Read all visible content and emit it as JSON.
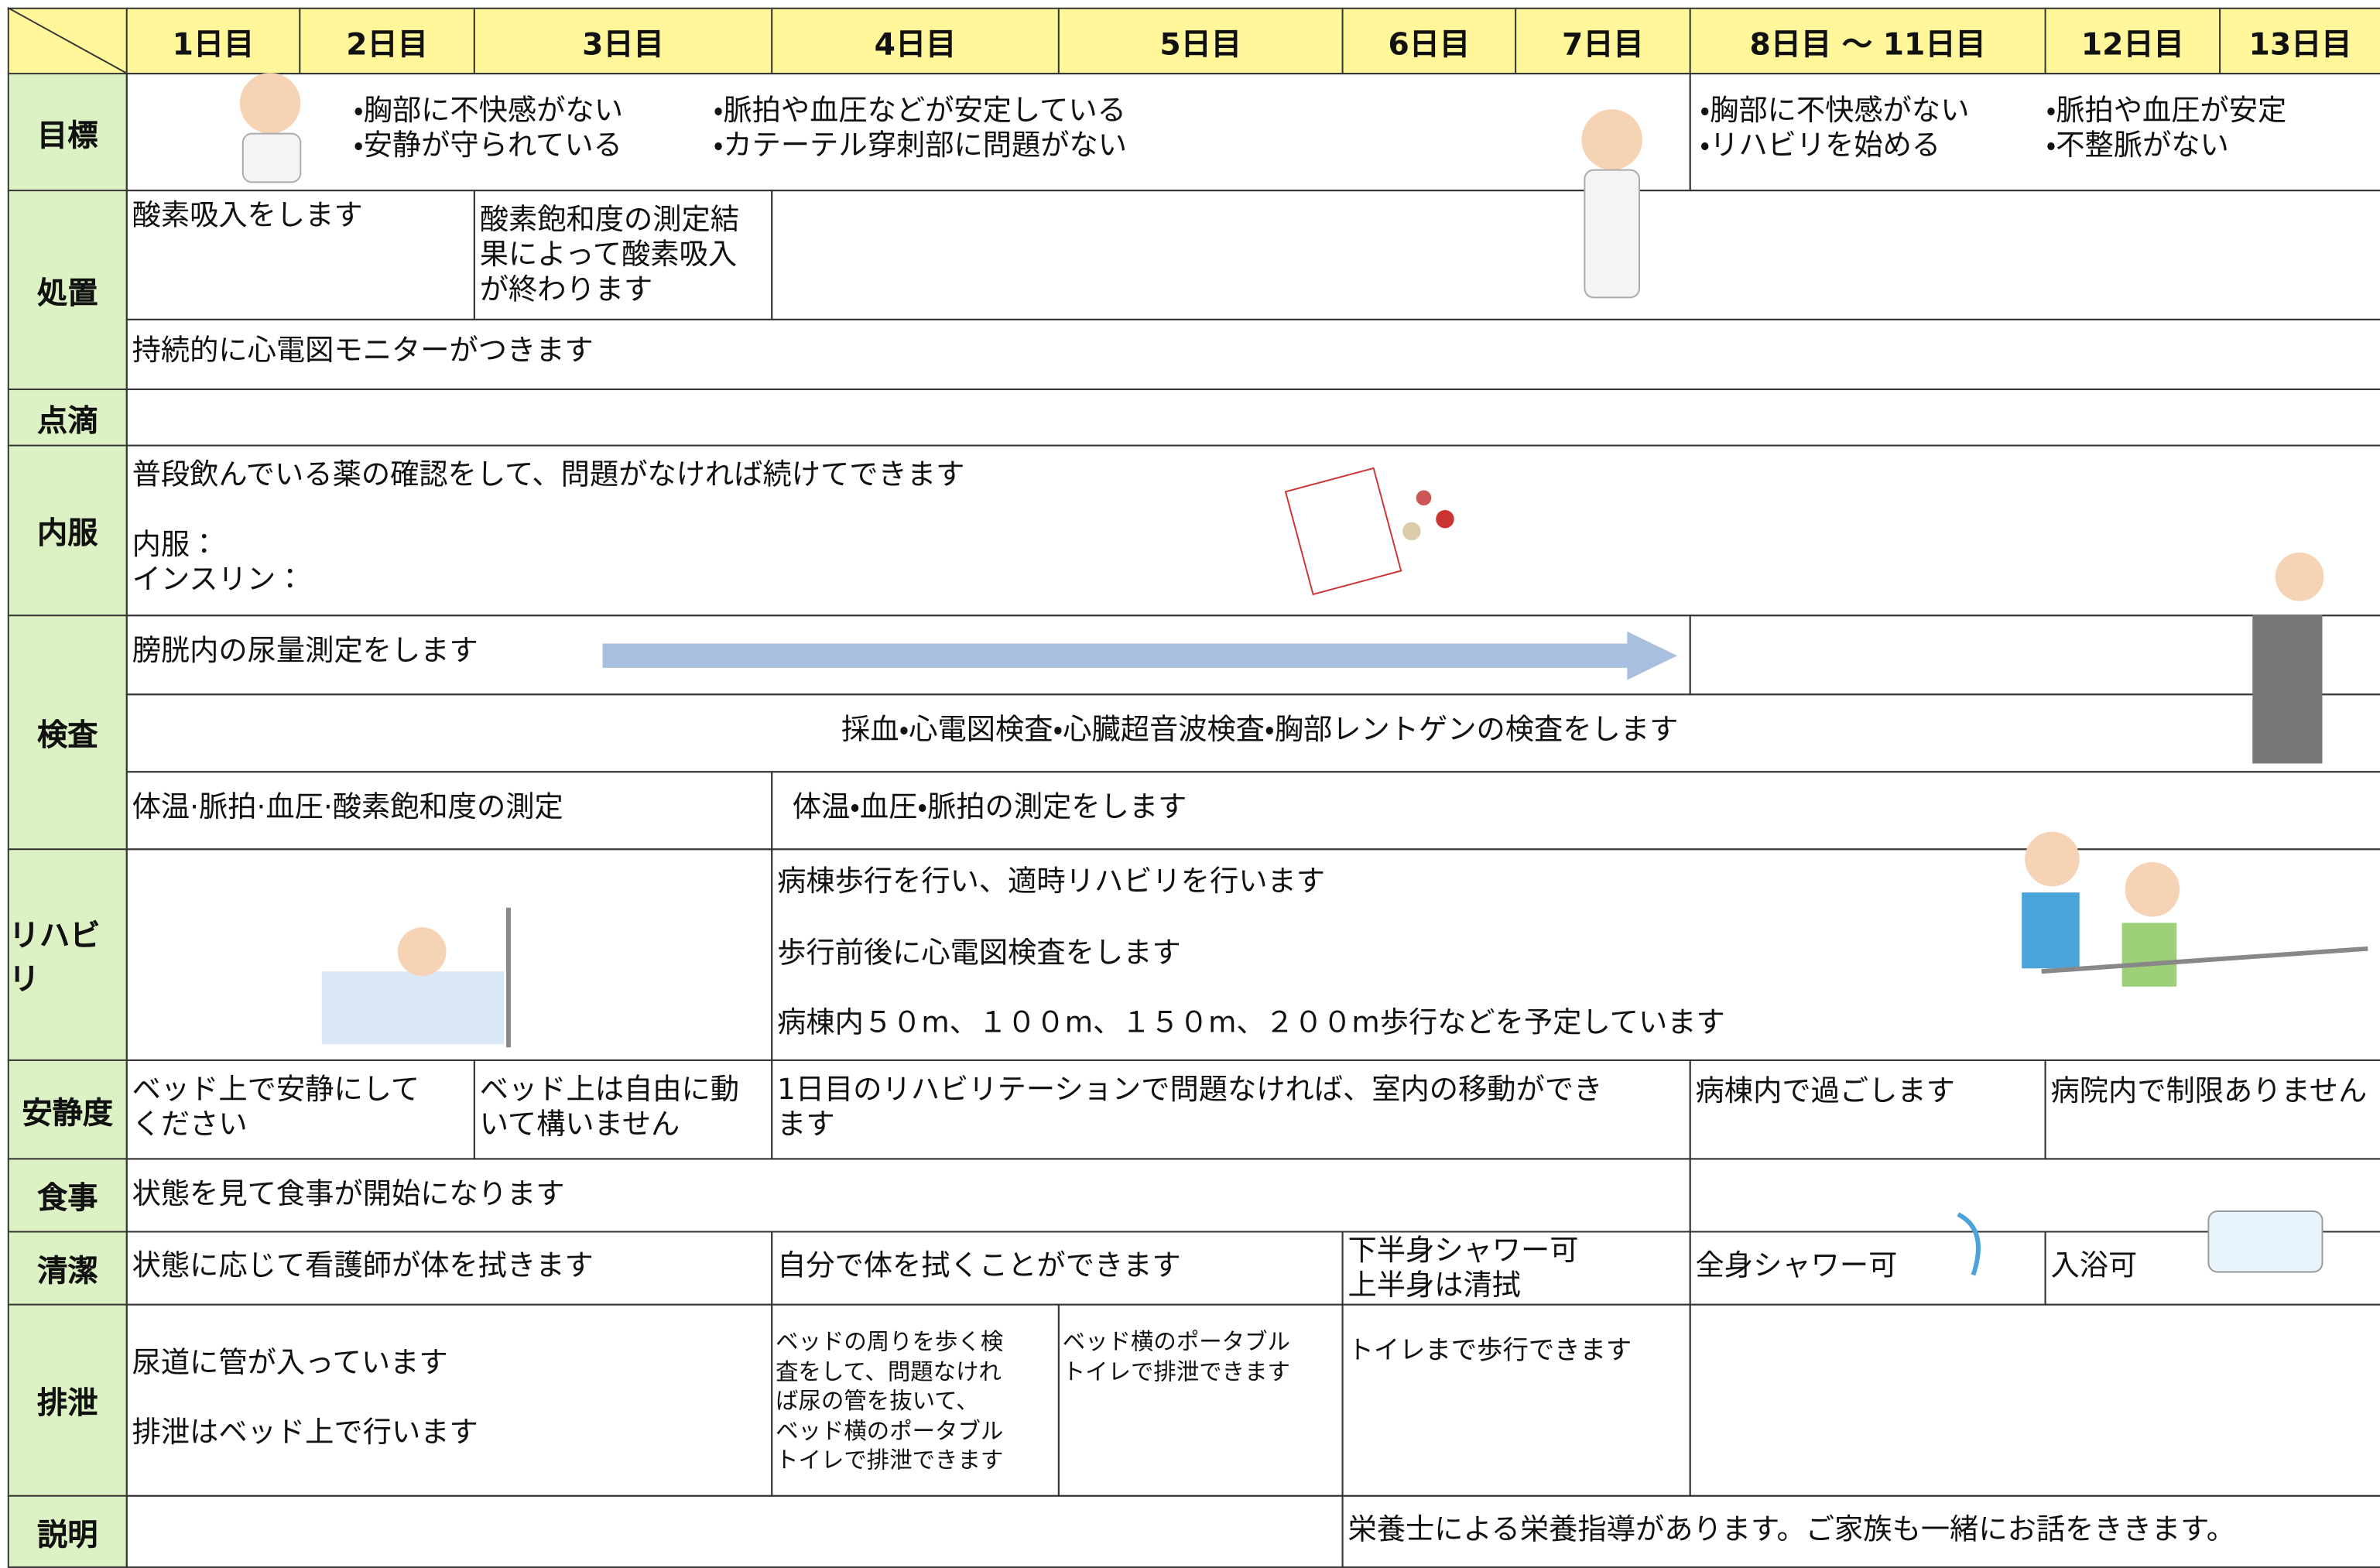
{
  "header": {
    "days": [
      "1日目",
      "2日目",
      "3日目",
      "4日目",
      "5日目",
      "6日目",
      "7日目",
      "8日目 ～ 11日目",
      "12日目",
      "13日目"
    ]
  },
  "rows": [
    {
      "label": "目標",
      "texts": [
        [
          "・胸部に不快感がない",
          "・安静が守られている"
        ],
        [
          "・脈拍や血圧などが安定している",
          "・カテーテル穿刺部に問題がない"
        ],
        [
          "・胸部に不快感がない",
          "・リハビリを始める"
        ],
        [
          "・脈拍や血圧が安定",
          "・不整脈がない"
        ]
      ]
    },
    {
      "label": "処置",
      "texts": [
        [
          "酸素吸入をします"
        ],
        [
          "酸素飽和度の測定結",
          "果によって酸素吸入",
          "が終わります"
        ],
        [
          "持続的に心電図モニターがつきます"
        ]
      ]
    },
    {
      "label": "点滴",
      "texts": []
    },
    {
      "label": "内服",
      "texts": [
        [
          "普段飲んでいる薬の確認をして、問題がなければ続けてできます"
        ],
        [
          "内服：",
          "インスリン："
        ]
      ]
    },
    {
      "label": "検査",
      "texts": [
        [
          "膀胱内の尿量測定をします"
        ],
        [
          "採血・心電図検査・心臓超音波検査・胸部レントゲンの検査をします"
        ],
        [
          "体温·脈拍·血圧·酸素飽和度の測定"
        ],
        [
          "体温・血圧・脈拍の測定をします"
        ]
      ]
    },
    {
      "label": "リハビリ",
      "texts": [
        [
          "病棟歩行を行い、適時リハビリを行います"
        ],
        [
          "歩行前後に心電図検査をします"
        ],
        [
          "病棟内５０m、１００m、１５０m、２００m歩行などを予定しています"
        ]
      ]
    },
    {
      "label": "安静度",
      "texts": [
        [
          "ベッド上で安静にして",
          "ください"
        ],
        [
          "ベッド上は自由に動",
          "いて構いません"
        ],
        [
          "1日目のリハビリテーションで問題なければ、室内の移動ができ",
          "ます"
        ],
        [
          "病棟内で過ごします"
        ],
        [
          "病院内で制限ありません"
        ]
      ]
    },
    {
      "label": "食事",
      "texts": [
        [
          "状態を見て食事が開始になります"
        ]
      ]
    },
    {
      "label": "清潔",
      "texts": [
        [
          "状態に応じて看護師が体を拭きます"
        ],
        [
          "自分で体を拭くことができます"
        ],
        [
          "下半身シャワー可",
          "上半身は清拭"
        ],
        [
          "全身シャワー可"
        ],
        [
          "入浴可"
        ]
      ]
    },
    {
      "label": "排泄",
      "texts": [
        [
          "尿道に管が入っています"
        ],
        [
          "排泄はベッド上で行います"
        ],
        [
          "ベッドの周りを歩く検",
          "査をして、問題なけれ",
          "ば尿の管を抜いて、",
          "ベッド横のポータブル",
          "トイレで排泄できます"
        ],
        [
          "ベッド横のポータブル",
          "トイレで排泄できます"
        ],
        [
          "トイレまで歩行できます"
        ]
      ]
    },
    {
      "label": "説明",
      "texts": [
        [
          "栄養士による栄養指導があります。ご家族も一緒にお話をききます。"
        ]
      ]
    }
  ]
}
